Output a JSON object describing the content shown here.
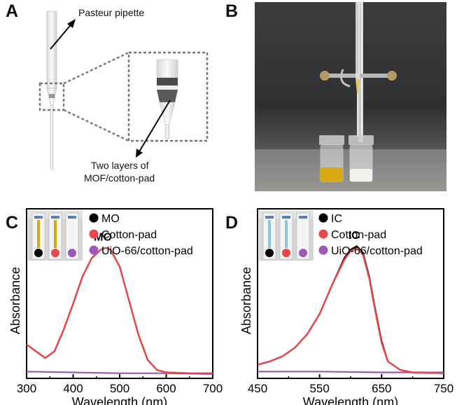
{
  "panels": {
    "a": {
      "letter": "A",
      "label_pipette": "Pasteur pipette",
      "label_layers_line1": "Two layers of",
      "label_layers_line2": "MOF/cotton-pad"
    },
    "b": {
      "letter": "B"
    }
  },
  "colors": {
    "black": "#000000",
    "red": "#e8474b",
    "purple": "#9a59b5",
    "yellow_solution": "#d7a812",
    "blue_solution": "#8cc6de"
  },
  "chart_data": [
    {
      "panel": "C",
      "type": "line",
      "xlabel": "Wavelength (nm)",
      "ylabel": "Absorbance",
      "xlim": [
        300,
        700
      ],
      "ylim": [
        0,
        1
      ],
      "xticks": [
        "300",
        "400",
        "500",
        "600",
        "700"
      ],
      "annotation": "MO",
      "legend_position": "top-right",
      "series": [
        {
          "name": "MO",
          "color": "#000000",
          "x": [
            300,
            320,
            340,
            360,
            380,
            400,
            420,
            440,
            460,
            470,
            480,
            500,
            520,
            540,
            560,
            580,
            600,
            650,
            700
          ],
          "y": [
            0.2,
            0.16,
            0.12,
            0.16,
            0.29,
            0.44,
            0.6,
            0.71,
            0.76,
            0.77,
            0.76,
            0.66,
            0.46,
            0.26,
            0.11,
            0.05,
            0.035,
            0.03,
            0.03
          ]
        },
        {
          "name": "Cotton-pad",
          "color": "#e8474b",
          "x": [
            300,
            320,
            340,
            360,
            380,
            400,
            420,
            440,
            460,
            470,
            480,
            500,
            520,
            540,
            560,
            580,
            600,
            650,
            700
          ],
          "y": [
            0.2,
            0.16,
            0.12,
            0.16,
            0.29,
            0.44,
            0.6,
            0.71,
            0.76,
            0.77,
            0.76,
            0.66,
            0.46,
            0.26,
            0.11,
            0.05,
            0.035,
            0.03,
            0.03
          ]
        },
        {
          "name": "UiO-66/cotton-pad",
          "color": "#9a59b5",
          "x": [
            300,
            400,
            500,
            600,
            700
          ],
          "y": [
            0.04,
            0.035,
            0.03,
            0.03,
            0.025
          ]
        }
      ]
    },
    {
      "panel": "D",
      "type": "line",
      "xlabel": "Wavelength (nm)",
      "ylabel": "Absorbance",
      "xlim": [
        450,
        750
      ],
      "ylim": [
        0,
        1
      ],
      "xticks": [
        "450",
        "550",
        "650",
        "750"
      ],
      "annotation": "IC",
      "legend_position": "top-right",
      "series": [
        {
          "name": "IC",
          "color": "#000000",
          "x": [
            450,
            470,
            490,
            510,
            530,
            550,
            570,
            590,
            600,
            610,
            620,
            630,
            640,
            650,
            660,
            680,
            700,
            750
          ],
          "y": [
            0.08,
            0.1,
            0.13,
            0.18,
            0.26,
            0.38,
            0.55,
            0.71,
            0.76,
            0.78,
            0.74,
            0.6,
            0.4,
            0.22,
            0.1,
            0.05,
            0.035,
            0.03
          ]
        },
        {
          "name": "Cotton-pad",
          "color": "#e8474b",
          "x": [
            450,
            470,
            490,
            510,
            530,
            550,
            570,
            590,
            600,
            610,
            620,
            630,
            640,
            650,
            660,
            680,
            700,
            750
          ],
          "y": [
            0.08,
            0.1,
            0.13,
            0.18,
            0.26,
            0.38,
            0.55,
            0.7,
            0.75,
            0.77,
            0.73,
            0.59,
            0.39,
            0.21,
            0.1,
            0.05,
            0.035,
            0.03
          ]
        },
        {
          "name": "UiO-66/cotton-pad",
          "color": "#9a59b5",
          "x": [
            450,
            550,
            650,
            750
          ],
          "y": [
            0.04,
            0.04,
            0.035,
            0.035
          ]
        }
      ]
    }
  ]
}
